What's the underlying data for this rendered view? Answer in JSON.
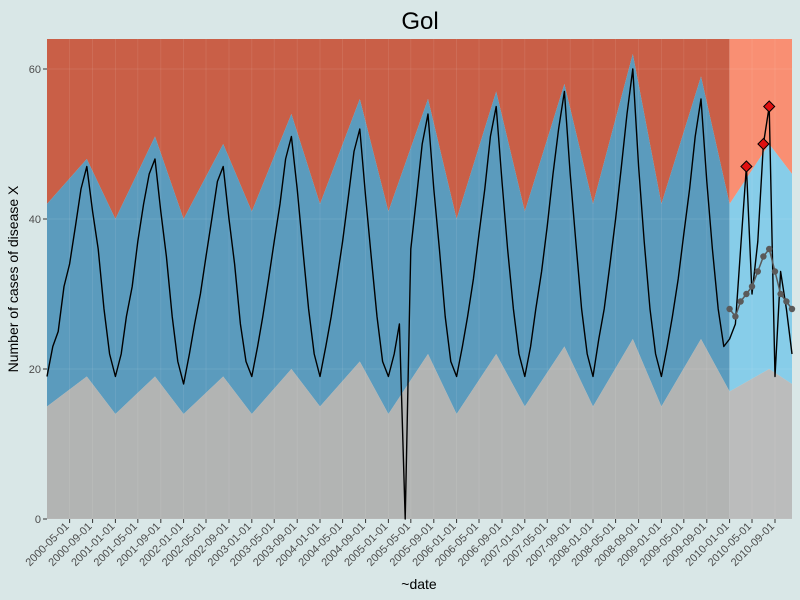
{
  "chart_data": {
    "type": "line",
    "title": "Gol",
    "xlabel": "~date",
    "ylabel": "Number of cases of disease X",
    "ylim": [
      0,
      64
    ],
    "xlim": [
      "2000-01-01",
      "2010-12-01"
    ],
    "yticks": [
      0,
      20,
      40,
      60
    ],
    "xticks": [
      "2000-05-01",
      "2000-09-01",
      "2001-01-01",
      "2001-05-01",
      "2001-09-01",
      "2002-01-01",
      "2002-05-01",
      "2002-09-01",
      "2003-01-01",
      "2003-05-01",
      "2003-09-01",
      "2004-01-01",
      "2004-05-01",
      "2004-09-01",
      "2005-01-01",
      "2005-05-01",
      "2005-09-01",
      "2006-01-01",
      "2006-05-01",
      "2006-09-01",
      "2007-01-01",
      "2007-05-01",
      "2007-09-01",
      "2008-01-01",
      "2008-05-01",
      "2008-09-01",
      "2009-01-01",
      "2009-05-01",
      "2009-09-01",
      "2010-01-01",
      "2010-05-01",
      "2010-09-01"
    ],
    "grid": true,
    "prediction_start": "2010-01-01",
    "colors": {
      "upper_region": "#c95f47",
      "upper_region_prediction": "#f98f73",
      "band": "#5b9bbd",
      "band_prediction": "#87cde9",
      "lower_region": "#b2b4b3",
      "lower_region_prediction": "#bbbcbc",
      "series": "#000000",
      "prediction_points": "#5a5a5a",
      "alarm": "#e01010"
    },
    "series": {
      "observed": [
        [
          "2000-01-01",
          19
        ],
        [
          "2000-02-01",
          23
        ],
        [
          "2000-03-01",
          25
        ],
        [
          "2000-04-01",
          31
        ],
        [
          "2000-05-01",
          34
        ],
        [
          "2000-06-01",
          39
        ],
        [
          "2000-07-01",
          44
        ],
        [
          "2000-08-01",
          47
        ],
        [
          "2000-09-01",
          41
        ],
        [
          "2000-10-01",
          36
        ],
        [
          "2000-11-01",
          28
        ],
        [
          "2000-12-01",
          22
        ],
        [
          "2001-01-01",
          19
        ],
        [
          "2001-02-01",
          22
        ],
        [
          "2001-03-01",
          27
        ],
        [
          "2001-04-01",
          31
        ],
        [
          "2001-05-01",
          37
        ],
        [
          "2001-06-01",
          42
        ],
        [
          "2001-07-01",
          46
        ],
        [
          "2001-08-01",
          48
        ],
        [
          "2001-09-01",
          41
        ],
        [
          "2001-10-01",
          35
        ],
        [
          "2001-11-01",
          27
        ],
        [
          "2001-12-01",
          21
        ],
        [
          "2002-01-01",
          18
        ],
        [
          "2002-02-01",
          22
        ],
        [
          "2002-03-01",
          26
        ],
        [
          "2002-04-01",
          30
        ],
        [
          "2002-05-01",
          35
        ],
        [
          "2002-06-01",
          40
        ],
        [
          "2002-07-01",
          45
        ],
        [
          "2002-08-01",
          47
        ],
        [
          "2002-09-01",
          40
        ],
        [
          "2002-10-01",
          34
        ],
        [
          "2002-11-01",
          26
        ],
        [
          "2002-12-01",
          21
        ],
        [
          "2003-01-01",
          19
        ],
        [
          "2003-02-01",
          23
        ],
        [
          "2003-03-01",
          27
        ],
        [
          "2003-04-01",
          32
        ],
        [
          "2003-05-01",
          37
        ],
        [
          "2003-06-01",
          42
        ],
        [
          "2003-07-01",
          48
        ],
        [
          "2003-08-01",
          51
        ],
        [
          "2003-09-01",
          44
        ],
        [
          "2003-10-01",
          36
        ],
        [
          "2003-11-01",
          28
        ],
        [
          "2003-12-01",
          22
        ],
        [
          "2004-01-01",
          19
        ],
        [
          "2004-02-01",
          23
        ],
        [
          "2004-03-01",
          27
        ],
        [
          "2004-04-01",
          32
        ],
        [
          "2004-05-01",
          37
        ],
        [
          "2004-06-01",
          43
        ],
        [
          "2004-07-01",
          49
        ],
        [
          "2004-08-01",
          52
        ],
        [
          "2004-09-01",
          43
        ],
        [
          "2004-10-01",
          35
        ],
        [
          "2004-11-01",
          27
        ],
        [
          "2004-12-01",
          21
        ],
        [
          "2005-01-01",
          19
        ],
        [
          "2005-02-01",
          22
        ],
        [
          "2005-03-01",
          26
        ],
        [
          "2005-04-01",
          0
        ],
        [
          "2005-05-01",
          36
        ],
        [
          "2005-06-01",
          43
        ],
        [
          "2005-07-01",
          50
        ],
        [
          "2005-08-01",
          54
        ],
        [
          "2005-09-01",
          44
        ],
        [
          "2005-10-01",
          36
        ],
        [
          "2005-11-01",
          27
        ],
        [
          "2005-12-01",
          21
        ],
        [
          "2006-01-01",
          19
        ],
        [
          "2006-02-01",
          23
        ],
        [
          "2006-03-01",
          27
        ],
        [
          "2006-04-01",
          32
        ],
        [
          "2006-05-01",
          38
        ],
        [
          "2006-06-01",
          44
        ],
        [
          "2006-07-01",
          51
        ],
        [
          "2006-08-01",
          55
        ],
        [
          "2006-09-01",
          45
        ],
        [
          "2006-10-01",
          36
        ],
        [
          "2006-11-01",
          28
        ],
        [
          "2006-12-01",
          22
        ],
        [
          "2007-01-01",
          19
        ],
        [
          "2007-02-01",
          23
        ],
        [
          "2007-03-01",
          28
        ],
        [
          "2007-04-01",
          33
        ],
        [
          "2007-05-01",
          39
        ],
        [
          "2007-06-01",
          46
        ],
        [
          "2007-07-01",
          52
        ],
        [
          "2007-08-01",
          57
        ],
        [
          "2007-09-01",
          46
        ],
        [
          "2007-10-01",
          37
        ],
        [
          "2007-11-01",
          28
        ],
        [
          "2007-12-01",
          22
        ],
        [
          "2008-01-01",
          19
        ],
        [
          "2008-02-01",
          24
        ],
        [
          "2008-03-01",
          28
        ],
        [
          "2008-04-01",
          34
        ],
        [
          "2008-05-01",
          40
        ],
        [
          "2008-06-01",
          47
        ],
        [
          "2008-07-01",
          54
        ],
        [
          "2008-08-01",
          60
        ],
        [
          "2008-09-01",
          47
        ],
        [
          "2008-10-01",
          37
        ],
        [
          "2008-11-01",
          28
        ],
        [
          "2008-12-01",
          22
        ],
        [
          "2009-01-01",
          19
        ],
        [
          "2009-02-01",
          23
        ],
        [
          "2009-03-01",
          27
        ],
        [
          "2009-04-01",
          32
        ],
        [
          "2009-05-01",
          38
        ],
        [
          "2009-06-01",
          44
        ],
        [
          "2009-07-01",
          51
        ],
        [
          "2009-08-01",
          56
        ],
        [
          "2009-09-01",
          45
        ],
        [
          "2009-10-01",
          36
        ],
        [
          "2009-11-01",
          28
        ],
        [
          "2009-12-01",
          23
        ],
        [
          "2010-01-01",
          24
        ],
        [
          "2010-02-01",
          26
        ],
        [
          "2010-03-01",
          36
        ],
        [
          "2010-04-01",
          47
        ],
        [
          "2010-05-01",
          30
        ],
        [
          "2010-06-01",
          37
        ],
        [
          "2010-07-01",
          50
        ],
        [
          "2010-08-01",
          55
        ],
        [
          "2010-09-01",
          19
        ],
        [
          "2010-10-01",
          33
        ],
        [
          "2010-11-01",
          28
        ],
        [
          "2010-12-01",
          22
        ]
      ],
      "expected": [
        [
          "2010-01-01",
          28
        ],
        [
          "2010-02-01",
          27
        ],
        [
          "2010-03-01",
          29
        ],
        [
          "2010-04-01",
          30
        ],
        [
          "2010-05-01",
          31
        ],
        [
          "2010-06-01",
          33
        ],
        [
          "2010-07-01",
          35
        ],
        [
          "2010-08-01",
          36
        ],
        [
          "2010-09-01",
          33
        ],
        [
          "2010-10-01",
          30
        ],
        [
          "2010-11-01",
          29
        ],
        [
          "2010-12-01",
          28
        ]
      ],
      "alarms": [
        [
          "2010-04-01",
          47
        ],
        [
          "2010-07-01",
          50
        ],
        [
          "2010-08-01",
          55
        ]
      ],
      "upper_threshold": [
        [
          "2000-01-01",
          42
        ],
        [
          "2000-08-01",
          48
        ],
        [
          "2001-01-01",
          40
        ],
        [
          "2001-08-01",
          51
        ],
        [
          "2002-01-01",
          40
        ],
        [
          "2002-08-01",
          50
        ],
        [
          "2003-01-01",
          41
        ],
        [
          "2003-08-01",
          54
        ],
        [
          "2004-01-01",
          42
        ],
        [
          "2004-08-01",
          56
        ],
        [
          "2005-01-01",
          41
        ],
        [
          "2005-08-01",
          56
        ],
        [
          "2006-01-01",
          40
        ],
        [
          "2006-08-01",
          57
        ],
        [
          "2007-01-01",
          41
        ],
        [
          "2007-08-01",
          58
        ],
        [
          "2008-01-01",
          42
        ],
        [
          "2008-08-01",
          62
        ],
        [
          "2009-01-01",
          42
        ],
        [
          "2009-08-01",
          59
        ],
        [
          "2010-01-01",
          42
        ],
        [
          "2010-08-01",
          50
        ],
        [
          "2010-12-01",
          46
        ]
      ],
      "lower_threshold": [
        [
          "2000-01-01",
          15
        ],
        [
          "2000-08-01",
          19
        ],
        [
          "2001-01-01",
          14
        ],
        [
          "2001-08-01",
          19
        ],
        [
          "2002-01-01",
          14
        ],
        [
          "2002-08-01",
          19
        ],
        [
          "2003-01-01",
          14
        ],
        [
          "2003-08-01",
          20
        ],
        [
          "2004-01-01",
          15
        ],
        [
          "2004-08-01",
          21
        ],
        [
          "2005-01-01",
          14
        ],
        [
          "2005-08-01",
          22
        ],
        [
          "2006-01-01",
          14
        ],
        [
          "2006-08-01",
          22
        ],
        [
          "2007-01-01",
          15
        ],
        [
          "2007-08-01",
          23
        ],
        [
          "2008-01-01",
          15
        ],
        [
          "2008-08-01",
          24
        ],
        [
          "2009-01-01",
          15
        ],
        [
          "2009-08-01",
          24
        ],
        [
          "2010-01-01",
          17
        ],
        [
          "2010-08-01",
          20
        ],
        [
          "2010-12-01",
          18
        ]
      ]
    }
  }
}
